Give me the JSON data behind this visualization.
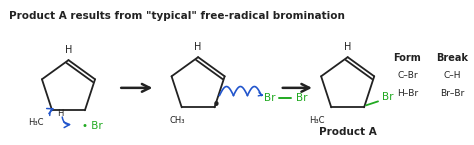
{
  "title": "Product A results from \"typical\" free-radical bromination",
  "title_fontsize": 7.5,
  "title_fontweight": "bold",
  "bg_color": "#ffffff",
  "black": "#222222",
  "green": "#22aa22",
  "blue": "#2255cc",
  "bond_rows": [
    [
      "C–Br",
      "C–H"
    ],
    [
      "H–Br",
      "Br–Br"
    ]
  ],
  "product_a_label": "Product A"
}
